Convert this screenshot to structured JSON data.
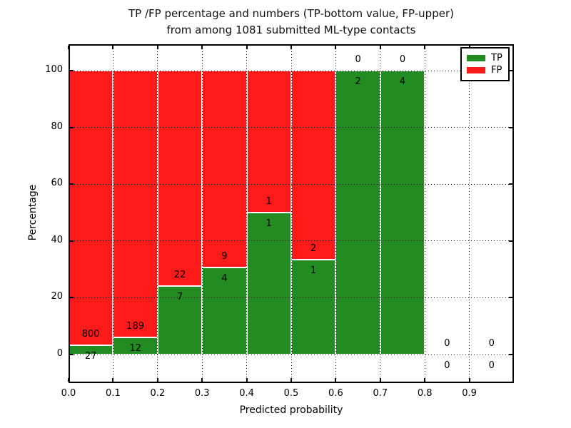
{
  "chart_data": {
    "type": "bar",
    "stacked": true,
    "title_line1": "TP /FP percentage and numbers (TP-bottom value, FP-upper)",
    "title_line2": "from among 1081 submitted ML-type contacts",
    "xlabel": "Predicted probability",
    "ylabel": "Percentage",
    "total_contacts": 1081,
    "x_ticks": [
      "0.0",
      "0.1",
      "0.2",
      "0.3",
      "0.4",
      "0.5",
      "0.6",
      "0.7",
      "0.8",
      "0.9"
    ],
    "y_ticks": [
      0,
      20,
      40,
      60,
      80,
      100
    ],
    "xlim": [
      0.0,
      1.0
    ],
    "ylim": [
      -10,
      110
    ],
    "grid": "dotted, drawn above bars",
    "legend_position": "upper right",
    "bins": [
      {
        "range": "0.0-0.1",
        "tp": 27,
        "fp": 800
      },
      {
        "range": "0.1-0.2",
        "tp": 12,
        "fp": 189
      },
      {
        "range": "0.2-0.3",
        "tp": 7,
        "fp": 22
      },
      {
        "range": "0.3-0.4",
        "tp": 4,
        "fp": 9
      },
      {
        "range": "0.4-0.5",
        "tp": 1,
        "fp": 1
      },
      {
        "range": "0.5-0.6",
        "tp": 1,
        "fp": 2
      },
      {
        "range": "0.6-0.7",
        "tp": 2,
        "fp": 0
      },
      {
        "range": "0.7-0.8",
        "tp": 4,
        "fp": 0
      },
      {
        "range": "0.8-0.9",
        "tp": 0,
        "fp": 0
      },
      {
        "range": "0.9-1.0",
        "tp": 0,
        "fp": 0
      }
    ],
    "legend": [
      {
        "label": "TP",
        "color": "#228b22"
      },
      {
        "label": "FP",
        "color": "#ff1a1a"
      }
    ],
    "colors": {
      "tp": "#228b22",
      "fp": "#ff1a1a",
      "bar_edge": "#ffffff",
      "axes": "#000000"
    }
  }
}
